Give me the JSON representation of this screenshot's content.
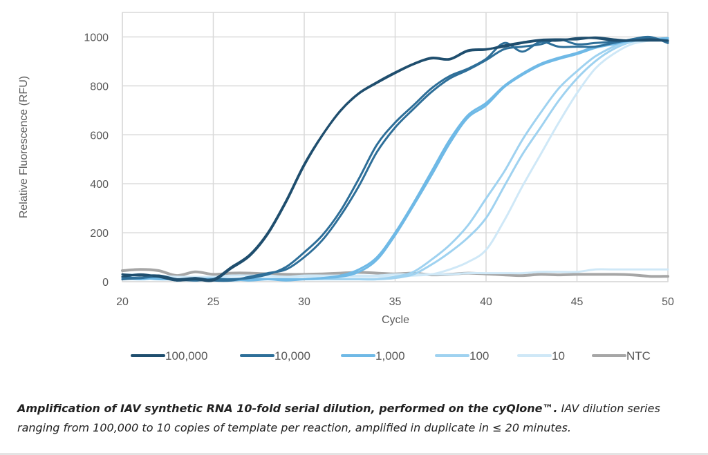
{
  "chart_data": {
    "type": "line",
    "title": "",
    "xlabel": "Cycle",
    "ylabel": "Relative Fluorescence (RFU)",
    "xlim": [
      20,
      50
    ],
    "ylim": [
      0,
      1100
    ],
    "xticks": [
      20,
      25,
      30,
      35,
      40,
      45,
      50
    ],
    "yticks": [
      0,
      200,
      400,
      600,
      800,
      1000
    ],
    "grid": true,
    "legend_position": "bottom",
    "x": [
      20,
      21,
      22,
      23,
      24,
      25,
      26,
      27,
      28,
      29,
      30,
      31,
      32,
      33,
      34,
      35,
      36,
      37,
      38,
      39,
      40,
      41,
      42,
      43,
      44,
      45,
      46,
      47,
      48,
      49,
      50
    ],
    "series": [
      {
        "name": "100,000",
        "replicate": 1,
        "color": "#1f4e6e",
        "values": [
          30,
          25,
          25,
          10,
          15,
          10,
          60,
          110,
          200,
          330,
          480,
          600,
          700,
          770,
          815,
          855,
          890,
          915,
          910,
          945,
          950,
          960,
          975,
          985,
          985,
          995,
          995,
          985,
          985,
          985,
          985
        ]
      },
      {
        "name": "100,000",
        "replicate": 2,
        "color": "#1f4e6e",
        "values": [
          20,
          30,
          20,
          5,
          10,
          5,
          55,
          105,
          195,
          325,
          475,
          598,
          698,
          768,
          812,
          852,
          888,
          912,
          908,
          942,
          948,
          965,
          978,
          988,
          990,
          990,
          998,
          990,
          985,
          990,
          985
        ]
      },
      {
        "name": "10,000",
        "replicate": 1,
        "color": "#2e6f99",
        "values": [
          20,
          15,
          25,
          10,
          5,
          10,
          10,
          15,
          30,
          60,
          120,
          190,
          290,
          420,
          560,
          650,
          720,
          790,
          840,
          870,
          910,
          975,
          940,
          980,
          960,
          960,
          960,
          975,
          990,
          1000,
          975
        ]
      },
      {
        "name": "10,000",
        "replicate": 2,
        "color": "#2e6f99",
        "values": [
          10,
          15,
          20,
          5,
          15,
          5,
          5,
          20,
          35,
          50,
          100,
          170,
          270,
          390,
          530,
          630,
          705,
          775,
          830,
          865,
          905,
          950,
          960,
          970,
          990,
          970,
          975,
          980,
          985,
          995,
          980
        ]
      },
      {
        "name": "1,000",
        "replicate": 1,
        "color": "#6fb9e6",
        "values": [
          15,
          10,
          15,
          5,
          10,
          10,
          5,
          10,
          10,
          10,
          10,
          15,
          25,
          50,
          100,
          200,
          320,
          450,
          580,
          680,
          730,
          800,
          850,
          890,
          915,
          935,
          960,
          975,
          985,
          990,
          995
        ]
      },
      {
        "name": "1,000",
        "replicate": 2,
        "color": "#6fb9e6",
        "values": [
          10,
          15,
          10,
          10,
          5,
          10,
          10,
          5,
          10,
          5,
          10,
          15,
          20,
          40,
          90,
          190,
          310,
          435,
          565,
          670,
          720,
          795,
          845,
          885,
          910,
          930,
          955,
          970,
          985,
          990,
          995
        ]
      },
      {
        "name": "100",
        "replicate": 1,
        "color": "#9fd2f0",
        "values": [
          20,
          15,
          20,
          10,
          10,
          15,
          10,
          10,
          10,
          10,
          10,
          10,
          10,
          10,
          10,
          20,
          40,
          90,
          150,
          230,
          340,
          450,
          580,
          690,
          790,
          860,
          920,
          960,
          990,
          995,
          990
        ]
      },
      {
        "name": "100",
        "replicate": 2,
        "color": "#9fd2f0",
        "values": [
          15,
          10,
          15,
          10,
          15,
          10,
          10,
          10,
          10,
          10,
          10,
          10,
          10,
          10,
          10,
          15,
          30,
          70,
          120,
          180,
          260,
          390,
          520,
          630,
          740,
          830,
          900,
          950,
          980,
          990,
          995
        ]
      },
      {
        "name": "10",
        "replicate": 1,
        "color": "#cfe8f7",
        "values": [
          25,
          20,
          20,
          15,
          15,
          15,
          15,
          15,
          15,
          15,
          20,
          20,
          20,
          20,
          20,
          20,
          25,
          30,
          50,
          80,
          130,
          250,
          390,
          520,
          650,
          770,
          870,
          930,
          970,
          985,
          995
        ]
      },
      {
        "name": "10",
        "replicate": 2,
        "color": "#cfe8f7",
        "values": [
          30,
          30,
          25,
          20,
          20,
          20,
          25,
          25,
          25,
          20,
          25,
          25,
          25,
          25,
          25,
          30,
          30,
          30,
          30,
          35,
          35,
          35,
          35,
          40,
          40,
          40,
          50,
          50,
          50,
          50,
          50
        ]
      },
      {
        "name": "NTC",
        "replicate": 1,
        "color": "#a6a6a6",
        "values": [
          45,
          50,
          45,
          25,
          40,
          30,
          35,
          35,
          32,
          30,
          30,
          32,
          35,
          38,
          35,
          32,
          35,
          28,
          30,
          35,
          32,
          28,
          25,
          30,
          28,
          30,
          30,
          30,
          28,
          22,
          22
        ]
      }
    ],
    "legend": [
      {
        "label": "100,000",
        "color": "#1f4e6e"
      },
      {
        "label": "10,000",
        "color": "#2e6f99"
      },
      {
        "label": "1,000",
        "color": "#6fb9e6"
      },
      {
        "label": "100",
        "color": "#9fd2f0"
      },
      {
        "label": "10",
        "color": "#cfe8f7"
      },
      {
        "label": "NTC",
        "color": "#a6a6a6"
      }
    ]
  },
  "caption": {
    "bold": "Amplification of IAV synthetic RNA 10-fold serial dilution, performed on the cyQlone™.",
    "rest": " IAV dilution series ranging from 100,000 to 10 copies of template per reaction, amplified in duplicate in ≤ 20 minutes."
  }
}
